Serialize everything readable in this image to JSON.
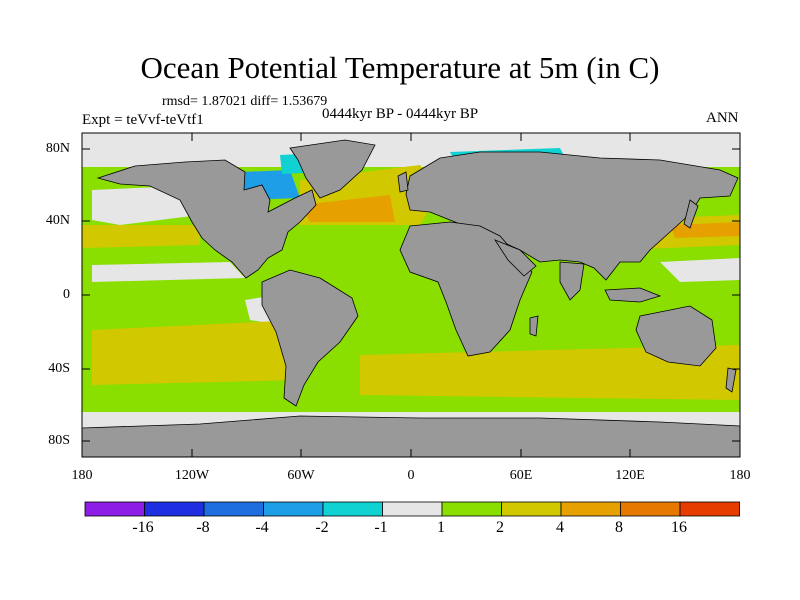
{
  "title": "Ocean Potential Temperature at 5m (in C)",
  "stats": "rmsd= 1.87021  diff= 1.53679",
  "experiment": "Expt = teVvf-teVtf1",
  "period": "0444kyr BP - 0444kyr BP",
  "season": "ANN",
  "lat_ticks": [
    "80N",
    "40N",
    "0",
    "40S",
    "80S"
  ],
  "lon_ticks": [
    "180",
    "120W",
    "60W",
    "0",
    "60E",
    "120E",
    "180"
  ],
  "colorbar": {
    "labels": [
      "-16",
      "-8",
      "-4",
      "-2",
      "-1",
      "1",
      "2",
      "4",
      "8",
      "16"
    ],
    "colors": [
      "#8c1ee6",
      "#1f2ee0",
      "#1e6ee0",
      "#1e9ee6",
      "#10d2d2",
      "#e6e6e6",
      "#8ade00",
      "#d2c800",
      "#e6a000",
      "#e67800",
      "#e63c00"
    ]
  },
  "map_colors": {
    "land": "#999999",
    "ocean_default": "#8ade00",
    "no_change": "#e6e6e6",
    "warm_small": "#d2c800",
    "warm_mid": "#e6a000",
    "warm_large": "#e67800",
    "cool_small": "#10d2d2",
    "cool_mid": "#1e9ee6",
    "cool_large": "#1e6ee0"
  }
}
